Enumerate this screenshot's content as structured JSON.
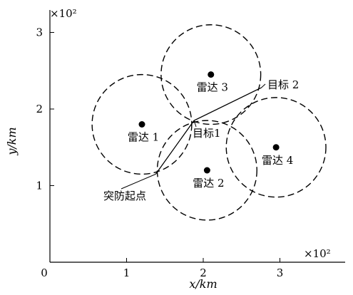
{
  "chart_data": {
    "type": "diagram",
    "xlabel": "x/km",
    "ylabel": "y/km",
    "x_multiplier": "×10²",
    "y_multiplier": "×10²",
    "x_ticks": [
      "0",
      "1",
      "2",
      "3"
    ],
    "y_ticks": [
      "1",
      "2",
      "3"
    ],
    "radars": [
      {
        "label": "雷达 1",
        "x": 1.2,
        "y": 1.8,
        "radius": 0.65
      },
      {
        "label": "雷达 2",
        "x": 2.05,
        "y": 1.2,
        "radius": 0.65
      },
      {
        "label": "雷达 3",
        "x": 2.1,
        "y": 2.45,
        "radius": 0.65
      },
      {
        "label": "雷达 4",
        "x": 2.95,
        "y": 1.5,
        "radius": 0.65
      }
    ],
    "path": [
      {
        "x": 1.38,
        "y": 1.15
      },
      {
        "x": 1.88,
        "y": 1.85
      },
      {
        "x": 2.76,
        "y": 2.28
      }
    ],
    "path_labels": {
      "start": "突防起点",
      "target1": "目标1",
      "target2": "目标 2"
    }
  }
}
